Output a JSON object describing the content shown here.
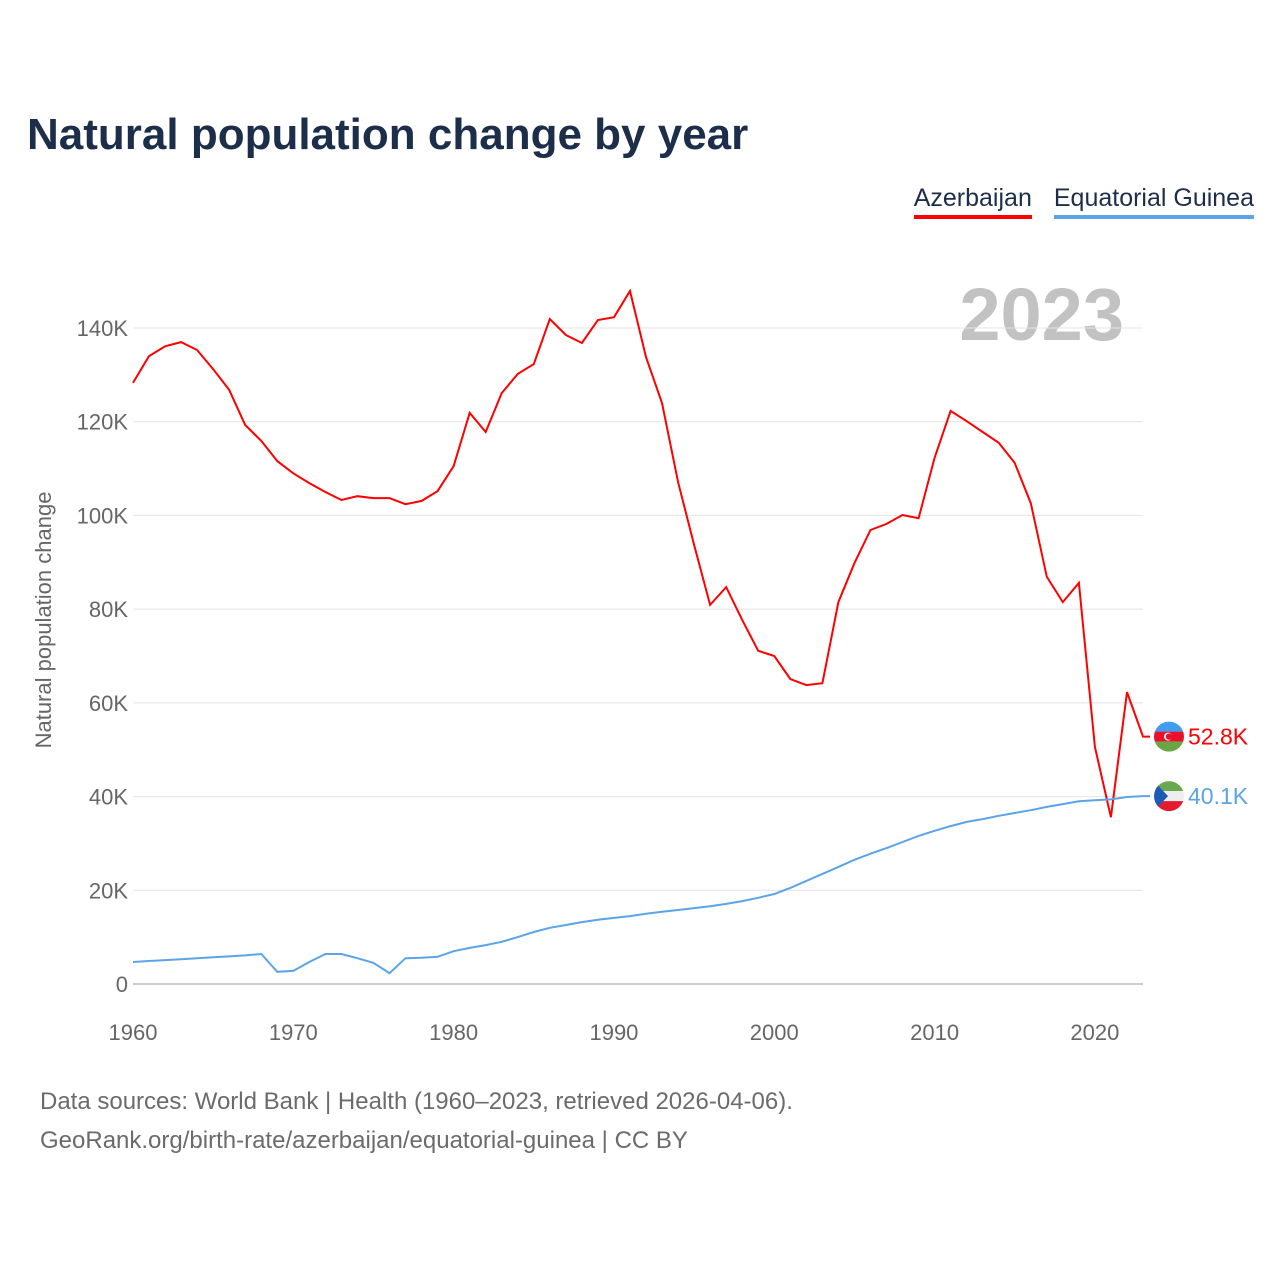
{
  "title": "Natural population change by year",
  "footer": {
    "line1": "Data sources: World Bank | Health (1960–2023, retrieved 2026-04-06).",
    "line2": "GeoRank.org/birth-rate/azerbaijan/equatorial-guinea | CC BY"
  },
  "chart_data": {
    "type": "line",
    "title": "Natural population change by year",
    "xlabel": "",
    "ylabel": "Natural population change",
    "year_watermark": "2023",
    "xlim": [
      1960,
      2023
    ],
    "ylim": [
      0,
      150000
    ],
    "x_ticks": [
      "1960",
      "1970",
      "1980",
      "1990",
      "2000",
      "2010",
      "2020"
    ],
    "y_ticks": [
      {
        "v": 0,
        "label": "0"
      },
      {
        "v": 20000,
        "label": "20K"
      },
      {
        "v": 40000,
        "label": "40K"
      },
      {
        "v": 60000,
        "label": "60K"
      },
      {
        "v": 80000,
        "label": "80K"
      },
      {
        "v": 100000,
        "label": "100K"
      },
      {
        "v": 120000,
        "label": "120K"
      },
      {
        "v": 140000,
        "label": "140K"
      }
    ],
    "grid": true,
    "legend_position": "top-right",
    "x_start": 1960,
    "series": [
      {
        "name": "Azerbaijan",
        "color": "#ff0000",
        "end_label": "52.8K",
        "flag": "azerbaijan-flag",
        "values": [
          128300,
          134000,
          136100,
          137000,
          135300,
          131200,
          126800,
          119300,
          115900,
          111600,
          109000,
          106900,
          105000,
          103300,
          104100,
          103700,
          103700,
          102400,
          103100,
          105200,
          110500,
          121900,
          117800,
          126100,
          130200,
          132300,
          141900,
          138500,
          136800,
          141700,
          142300,
          147900,
          133800,
          124000,
          107100,
          93700,
          80900,
          84700,
          77700,
          71100,
          70000,
          65100,
          63800,
          64200,
          81500,
          89800,
          96900,
          98200,
          100100,
          99400,
          112300,
          122300,
          120100,
          117800,
          115500,
          111200,
          102600,
          86900,
          81500,
          85600,
          50600,
          35600,
          62300,
          52800
        ]
      },
      {
        "name": "Equatorial Guinea",
        "color": "#5ba4e8",
        "end_label": "40.1K",
        "flag": "equatorial-guinea-flag",
        "values": [
          4700,
          4900,
          5100,
          5300,
          5500,
          5700,
          5900,
          6100,
          6400,
          2600,
          2800,
          4700,
          6400,
          6400,
          5500,
          4500,
          2300,
          5500,
          5600,
          5800,
          7000,
          7700,
          8300,
          9000,
          10000,
          11100,
          12000,
          12600,
          13200,
          13700,
          14100,
          14500,
          15000,
          15400,
          15800,
          16200,
          16600,
          17100,
          17700,
          18400,
          19200,
          20500,
          22000,
          23500,
          25000,
          26500,
          27800,
          29000,
          30300,
          31600,
          32700,
          33700,
          34600,
          35200,
          35900,
          36500,
          37100,
          37800,
          38400,
          39000,
          39200,
          39400,
          39900,
          40100
        ]
      }
    ]
  }
}
